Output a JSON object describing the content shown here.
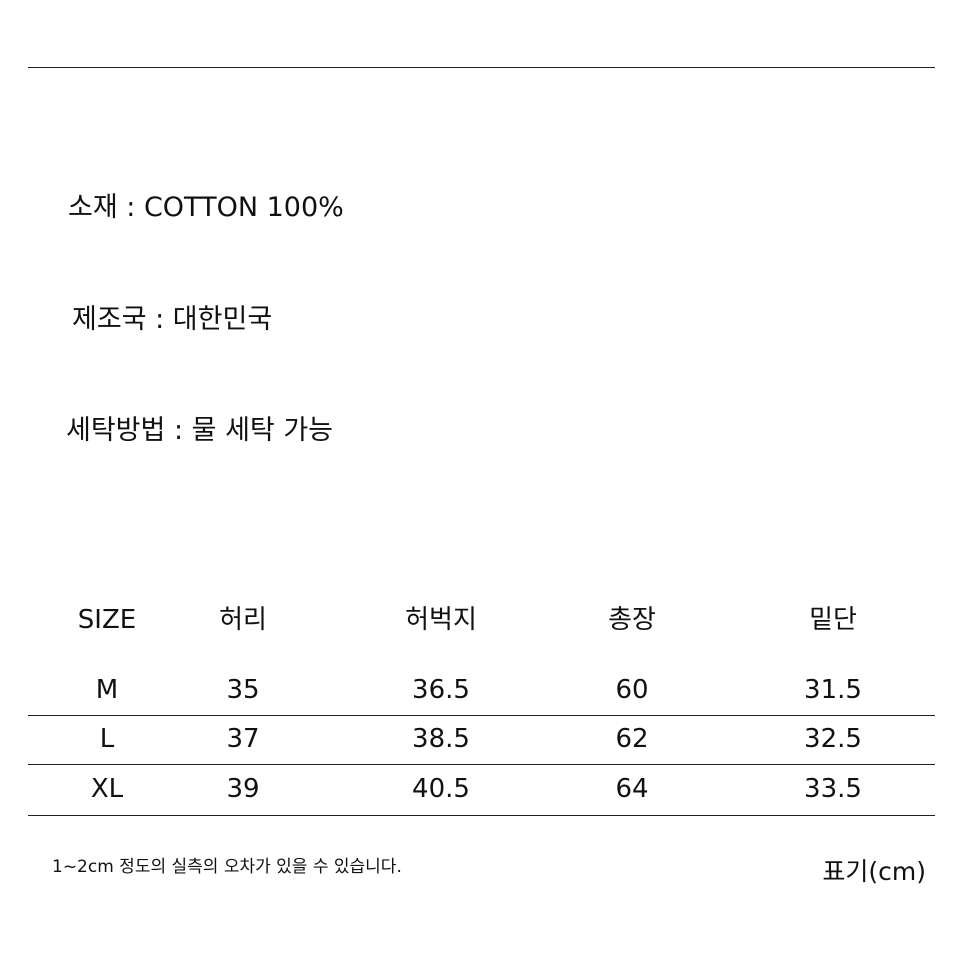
{
  "info": [
    {
      "label": "소재",
      "value": "COTTON 100%"
    },
    {
      "label": "제조국",
      "value": "대한민국"
    },
    {
      "label": "세탁방법",
      "value": "물 세탁 가능"
    }
  ],
  "size_table": {
    "headers": [
      "SIZE",
      "허리",
      "허벅지",
      "총장",
      "밑단"
    ],
    "rows": [
      [
        "M",
        "35",
        "36.5",
        "60",
        "31.5"
      ],
      [
        "L",
        "37",
        "38.5",
        "62",
        "32.5"
      ],
      [
        "XL",
        "39",
        "40.5",
        "64",
        "33.5"
      ]
    ]
  },
  "note": "1~2cm 정도의 실측의 오차가 있을 수 있습니다.",
  "unit_label": "표기(cm)"
}
